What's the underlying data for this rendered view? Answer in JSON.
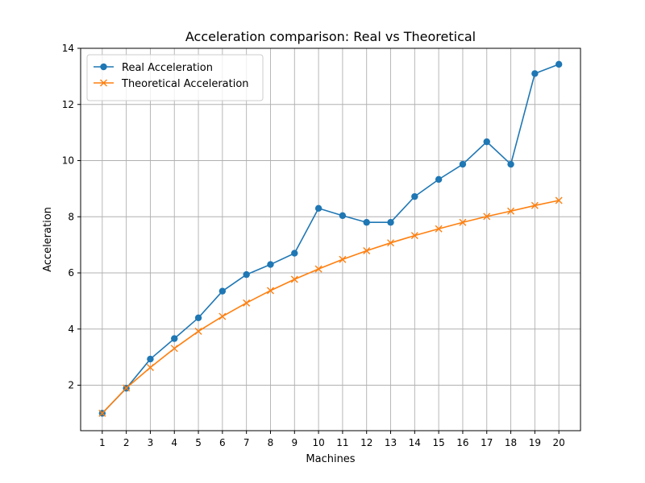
{
  "chart_data": {
    "type": "line",
    "title": "Acceleration comparison: Real vs Theoretical",
    "xlabel": "Machines",
    "ylabel": "Acceleration",
    "x": [
      1,
      2,
      3,
      4,
      5,
      6,
      7,
      8,
      9,
      10,
      11,
      12,
      13,
      14,
      15,
      16,
      17,
      18,
      19,
      20
    ],
    "xlim": [
      0.1,
      20.9
    ],
    "ylim": [
      0.38,
      14.0
    ],
    "yticks": [
      2,
      4,
      6,
      8,
      10,
      12,
      14
    ],
    "grid": true,
    "legend_position": "top-left",
    "series": [
      {
        "name": "Real Acceleration",
        "color": "#1f77b4",
        "marker": "circle",
        "values": [
          1.0,
          1.89,
          2.93,
          3.66,
          4.4,
          5.35,
          5.94,
          6.3,
          6.7,
          8.3,
          8.04,
          7.8,
          7.8,
          8.72,
          9.33,
          9.87,
          10.67,
          9.87,
          13.1,
          13.43
        ]
      },
      {
        "name": "Theoretical Acceleration",
        "color": "#ff7f0e",
        "marker": "x",
        "values": [
          1.0,
          1.9,
          2.63,
          3.31,
          3.92,
          4.45,
          4.93,
          5.37,
          5.77,
          6.14,
          6.48,
          6.79,
          7.07,
          7.33,
          7.57,
          7.8,
          8.01,
          8.2,
          8.4,
          8.58
        ]
      }
    ]
  }
}
